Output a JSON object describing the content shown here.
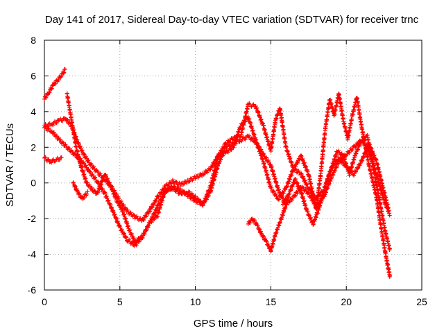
{
  "chart_data": {
    "type": "scatter",
    "title": "Day 141 of 2017, Sidereal Day-to-day VTEC variation (SDTVAR) for receiver trnc",
    "xlabel": "GPS time / hours",
    "ylabel": "SDTVAR / TECUs",
    "xlim": [
      0,
      25
    ],
    "ylim": [
      -6,
      8
    ],
    "xticks": [
      0,
      5,
      10,
      15,
      20,
      25
    ],
    "yticks": [
      -6,
      -4,
      -2,
      0,
      2,
      4,
      6,
      8
    ],
    "grid": true,
    "marker": "+",
    "color": "#ff0000",
    "series": [
      {
        "name": "track-1",
        "points": [
          [
            0,
            4.7
          ],
          [
            0.3,
            5.1
          ],
          [
            0.6,
            5.5
          ],
          [
            0.9,
            5.8
          ],
          [
            1.2,
            6.1
          ],
          [
            1.4,
            6.4
          ]
        ]
      },
      {
        "name": "track-2",
        "points": [
          [
            0,
            3.1
          ],
          [
            0.5,
            2.9
          ],
          [
            1,
            2.4
          ],
          [
            1.5,
            2.0
          ],
          [
            2,
            1.6
          ],
          [
            2.5,
            1.2
          ],
          [
            3,
            0.6
          ],
          [
            3.5,
            0.1
          ],
          [
            4,
            -0.6
          ],
          [
            4.5,
            -1.5
          ],
          [
            5,
            -2.5
          ],
          [
            5.5,
            -3.2
          ],
          [
            6,
            -3.5
          ],
          [
            6.5,
            -3.0
          ],
          [
            7,
            -2.2
          ],
          [
            7.5,
            -1.3
          ],
          [
            8,
            -0.5
          ],
          [
            8.5,
            -0.2
          ],
          [
            9,
            -0.4
          ],
          [
            9.5,
            -0.7
          ],
          [
            10,
            -1.0
          ],
          [
            10.5,
            -1.2
          ],
          [
            11,
            -0.5
          ],
          [
            11.5,
            1.0
          ],
          [
            12,
            2.0
          ],
          [
            12.5,
            2.2
          ],
          [
            13,
            2.4
          ],
          [
            13.5,
            2.6
          ],
          [
            14,
            2.3
          ],
          [
            14.5,
            1.6
          ],
          [
            15,
            1.0
          ],
          [
            15.5,
            -0.4
          ],
          [
            16,
            -1.2
          ],
          [
            16.5,
            -0.8
          ],
          [
            17,
            -0.2
          ],
          [
            17.5,
            -0.6
          ],
          [
            18,
            -1.3
          ],
          [
            18.5,
            -0.8
          ],
          [
            19,
            0.3
          ],
          [
            19.5,
            1.2
          ],
          [
            20,
            1.6
          ],
          [
            20.5,
            2.0
          ],
          [
            21,
            2.4
          ],
          [
            21.5,
            1.8
          ],
          [
            22,
            0.5
          ],
          [
            22.5,
            -1.0
          ],
          [
            22.9,
            -1.8
          ]
        ]
      },
      {
        "name": "track-3",
        "points": [
          [
            0,
            3.2
          ],
          [
            0.5,
            3.3
          ],
          [
            1,
            3.5
          ],
          [
            1.4,
            3.6
          ],
          [
            1.8,
            3.2
          ],
          [
            2.2,
            2.3
          ],
          [
            2.6,
            1.6
          ],
          [
            3,
            1.1
          ],
          [
            3.5,
            0.6
          ],
          [
            4,
            0.2
          ],
          [
            4.5,
            -0.3
          ],
          [
            5,
            -1.0
          ],
          [
            5.5,
            -1.6
          ],
          [
            6,
            -1.9
          ],
          [
            6.5,
            -2.1
          ],
          [
            7,
            -1.5
          ],
          [
            7.5,
            -0.8
          ],
          [
            8,
            -0.2
          ],
          [
            8.5,
            0.1
          ],
          [
            9,
            -0.1
          ],
          [
            9.5,
            0.1
          ],
          [
            10,
            0.3
          ],
          [
            10.5,
            0.5
          ],
          [
            11,
            0.8
          ],
          [
            11.5,
            1.5
          ],
          [
            12,
            1.7
          ],
          [
            12.5,
            2.0
          ],
          [
            13,
            3.2
          ],
          [
            13.5,
            3.7
          ],
          [
            14,
            2.4
          ],
          [
            14.5,
            1.2
          ],
          [
            15,
            -0.3
          ],
          [
            15.5,
            -0.9
          ],
          [
            16,
            -0.3
          ],
          [
            16.5,
            0.8
          ],
          [
            17,
            0.5
          ],
          [
            17.5,
            -0.3
          ],
          [
            18,
            -0.9
          ],
          [
            18.5,
            -0.4
          ],
          [
            19,
            0.8
          ],
          [
            19.5,
            1.4
          ],
          [
            20,
            0.9
          ],
          [
            20.5,
            0.5
          ],
          [
            21,
            1.2
          ],
          [
            21.5,
            2.2
          ],
          [
            22,
            1.2
          ],
          [
            22.5,
            -0.5
          ],
          [
            22.8,
            -1.5
          ]
        ]
      },
      {
        "name": "track-4",
        "points": [
          [
            0,
            1.4
          ],
          [
            0.4,
            1.2
          ],
          [
            0.8,
            1.3
          ],
          [
            1.2,
            1.4
          ]
        ]
      },
      {
        "name": "track-5",
        "points": [
          [
            1.5,
            5.0
          ],
          [
            1.8,
            3.5
          ],
          [
            2.1,
            2.0
          ],
          [
            2.4,
            1.0
          ],
          [
            2.8,
            0.0
          ],
          [
            3.2,
            -0.4
          ],
          [
            3.5,
            -0.6
          ],
          [
            4,
            0.5
          ],
          [
            4.4,
            -0.2
          ],
          [
            4.8,
            -1.0
          ],
          [
            5.2,
            -1.6
          ],
          [
            5.6,
            -2.6
          ],
          [
            6,
            -3.3
          ],
          [
            6.5,
            -3.0
          ],
          [
            7,
            -2.2
          ],
          [
            7.5,
            -1.8
          ],
          [
            8,
            -0.4
          ],
          [
            8.5,
            -0.3
          ],
          [
            9,
            -0.6
          ],
          [
            9.5,
            -0.5
          ],
          [
            10,
            -0.8
          ],
          [
            10.5,
            -1.2
          ],
          [
            11,
            -0.2
          ],
          [
            11.5,
            1.5
          ],
          [
            12,
            2.2
          ],
          [
            12.5,
            2.5
          ],
          [
            13,
            2.6
          ],
          [
            13.5,
            4.4
          ],
          [
            14,
            4.3
          ],
          [
            14.5,
            3.2
          ],
          [
            15,
            1.8
          ],
          [
            15.3,
            3.5
          ],
          [
            15.6,
            4.2
          ],
          [
            16,
            2.0
          ],
          [
            16.5,
            0.8
          ],
          [
            17,
            1.5
          ],
          [
            17.5,
            0.5
          ],
          [
            18,
            -1.5
          ],
          [
            18.3,
            0.5
          ],
          [
            18.6,
            3.0
          ],
          [
            18.9,
            4.7
          ],
          [
            19.2,
            3.8
          ],
          [
            19.5,
            5.0
          ],
          [
            19.8,
            3.5
          ],
          [
            20.1,
            2.5
          ],
          [
            20.4,
            3.8
          ],
          [
            20.7,
            4.8
          ],
          [
            21,
            3.2
          ],
          [
            21.5,
            1.0
          ],
          [
            22,
            -0.8
          ],
          [
            22.3,
            -2.5
          ],
          [
            22.6,
            -4.0
          ],
          [
            22.9,
            -5.3
          ]
        ]
      },
      {
        "name": "track-6",
        "points": [
          [
            1.9,
            0.0
          ],
          [
            2.2,
            -0.5
          ],
          [
            2.5,
            -0.9
          ],
          [
            2.9,
            -0.5
          ]
        ]
      },
      {
        "name": "track-7",
        "points": [
          [
            13.5,
            -2.3
          ],
          [
            13.8,
            -2.0
          ],
          [
            14.1,
            -2.4
          ],
          [
            14.4,
            -2.9
          ],
          [
            14.7,
            -3.3
          ],
          [
            15,
            -3.8
          ],
          [
            15.3,
            -2.9
          ],
          [
            15.6,
            -2.2
          ],
          [
            15.9,
            -1.5
          ],
          [
            16.2,
            -0.8
          ]
        ]
      },
      {
        "name": "track-8",
        "points": [
          [
            15.8,
            -1.2
          ],
          [
            16.2,
            -0.6
          ],
          [
            16.6,
            0.2
          ],
          [
            17,
            -0.5
          ],
          [
            17.4,
            -1.6
          ],
          [
            17.8,
            -2.3
          ],
          [
            18.2,
            -1.4
          ],
          [
            18.6,
            -0.2
          ],
          [
            19,
            0.8
          ],
          [
            19.4,
            1.8
          ],
          [
            19.8,
            1.5
          ],
          [
            20.2,
            0.5
          ],
          [
            20.6,
            1.6
          ],
          [
            21,
            2.4
          ],
          [
            21.4,
            2.6
          ],
          [
            21.8,
            0.8
          ],
          [
            22.2,
            -1.0
          ],
          [
            22.6,
            -2.8
          ],
          [
            22.9,
            -3.8
          ]
        ]
      }
    ]
  }
}
